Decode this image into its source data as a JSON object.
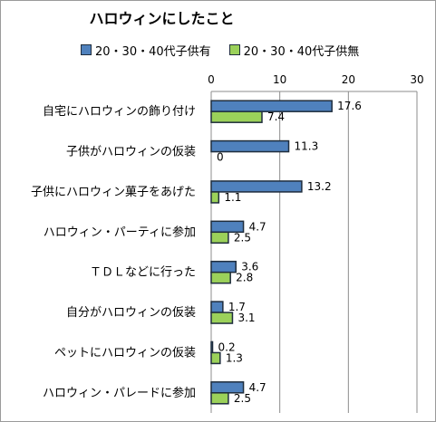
{
  "chart_data": {
    "type": "bar",
    "orientation": "horizontal",
    "title": "ハロウィンにしたこと",
    "xlabel": "",
    "ylabel": "",
    "xlim": [
      0,
      30
    ],
    "xticks": [
      0,
      10,
      20,
      30
    ],
    "x_axis_position": "top",
    "grid": true,
    "legend_position": "top",
    "categories": [
      "自宅にハロウィンの飾り付け",
      "子供がハロウィンの仮装",
      "子供にハロウィン菓子をあげた",
      "ハロウィン・パーティに参加",
      "ＴＤＬなどに行った",
      "自分がハロウィンの仮装",
      "ペットにハロウィンの仮装",
      "ハロウィン・パレードに参加"
    ],
    "series": [
      {
        "name": "20・30・40代子供有",
        "color": "#4f81bd",
        "values": [
          17.6,
          11.3,
          13.2,
          4.7,
          3.6,
          1.7,
          0.2,
          4.7
        ]
      },
      {
        "name": "20・30・40代子供無",
        "color": "#9bd15a",
        "values": [
          7.4,
          0,
          1.1,
          2.5,
          2.8,
          3.1,
          1.3,
          2.5
        ]
      }
    ]
  }
}
